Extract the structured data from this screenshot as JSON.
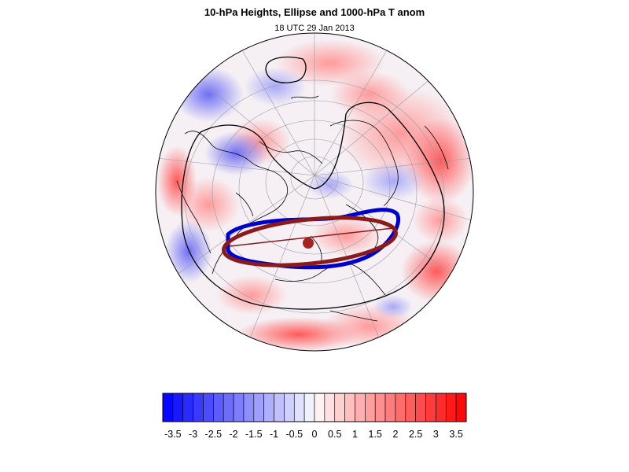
{
  "title": "10-hPa Heights, Ellipse and 1000-hPa T anom",
  "subtitle": "18 UTC 29 Jan 2013",
  "colorbar": {
    "tick_labels": [
      "-3.5",
      "-3",
      "-2.5",
      "-2",
      "-1.5",
      "-1",
      "-0.5",
      "0",
      "0.5",
      "1",
      "1.5",
      "2",
      "2.5",
      "3",
      "3.5"
    ],
    "min": -3.75,
    "max": 3.75,
    "step": 0.25,
    "negative_color": "#0000ff",
    "positive_color": "#ff0000"
  },
  "map": {
    "projection": "orthographic-north-polar",
    "colors": {
      "height_contour": "#000000",
      "vortex_edge": "#0000cc",
      "ellipse": "#8b1a1a",
      "ellipse_center": "#a52222"
    }
  }
}
